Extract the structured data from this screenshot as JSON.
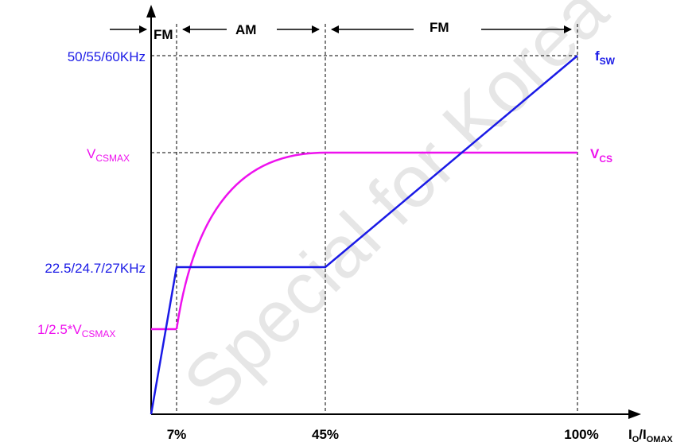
{
  "regions": [
    {
      "label": "FM"
    },
    {
      "label": "AM"
    },
    {
      "label": "FM"
    }
  ],
  "x_ticks": [
    "7%",
    "45%",
    "100%"
  ],
  "x_axis_label": {
    "main": "I",
    "sub1": "O",
    "sep": "/I",
    "sub2": "OMAX"
  },
  "y_labels": {
    "f_high": "50/55/60KHz",
    "vcsmax": {
      "main": "V",
      "sub": "CSMAX"
    },
    "f_low": "22.5/24.7/27KHz",
    "vcs_low": {
      "prefix": "1/2.5*V",
      "sub": "CSMAX"
    }
  },
  "curve_labels": {
    "fsw": {
      "main": "f",
      "sub": "SW"
    },
    "vcs": {
      "main": "V",
      "sub": "CS"
    }
  },
  "watermark": "Special for Korea",
  "colors": {
    "fsw": "#1a1ae6",
    "vcs": "#ee11ee",
    "axis": "#000000",
    "guide": "#000000",
    "watermark": "#e6e6e6"
  },
  "chart_data": {
    "type": "line",
    "x_unit": "% of I_OMAX",
    "breakpoints_x": [
      7,
      45,
      100
    ],
    "series": [
      {
        "name": "fsw",
        "points": [
          [
            0,
            0
          ],
          [
            7,
            "22.5/24.7/27KHz"
          ],
          [
            45,
            "22.5/24.7/27KHz"
          ],
          [
            100,
            "50/55/60KHz"
          ]
        ]
      },
      {
        "name": "VCS",
        "points": [
          [
            0,
            "1/2.5*VCSMAX"
          ],
          [
            7,
            "1/2.5*VCSMAX"
          ],
          [
            45,
            "VCSMAX"
          ],
          [
            100,
            "VCSMAX"
          ]
        ]
      }
    ]
  }
}
